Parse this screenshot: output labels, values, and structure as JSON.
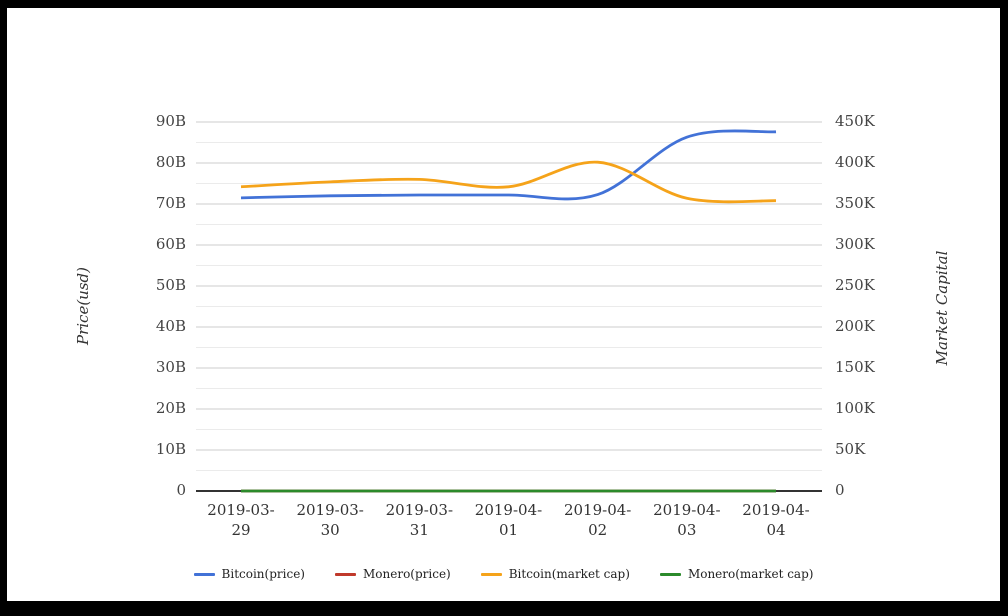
{
  "page": {
    "background": "#ffffff",
    "frame_color": "#000000"
  },
  "chart_data": {
    "type": "line",
    "title": "",
    "categories": [
      "2019-03-29",
      "2019-03-30",
      "2019-03-31",
      "2019-04-01",
      "2019-04-02",
      "2019-04-03",
      "2019-04-04"
    ],
    "series": [
      {
        "name": "Bitcoin(price)",
        "color": "#4272d7",
        "axis": "left",
        "values": [
          71.5,
          72.0,
          72.2,
          72.2,
          72.3,
          86.3,
          87.6
        ],
        "unit": "B"
      },
      {
        "name": "Monero(price)",
        "color": "#c0392b",
        "axis": "left",
        "values": [
          0,
          0,
          0,
          0,
          0,
          0,
          0
        ],
        "unit": "B"
      },
      {
        "name": "Bitcoin(market cap)",
        "color": "#f5a31a",
        "axis": "right",
        "values": [
          371,
          377,
          380,
          371,
          401,
          357,
          354
        ],
        "unit": "K"
      },
      {
        "name": "Monero(market cap)",
        "color": "#2b8a2b",
        "axis": "right",
        "values": [
          0,
          0,
          0,
          0,
          0,
          0,
          0
        ],
        "unit": "K"
      }
    ],
    "left_axis": {
      "title": "Price(usd)",
      "ylim": [
        0,
        90
      ],
      "ticks": [
        "0",
        "10B",
        "20B",
        "30B",
        "40B",
        "50B",
        "60B",
        "70B",
        "80B",
        "90B"
      ]
    },
    "right_axis": {
      "title": "Market Capital",
      "ylim": [
        0,
        450
      ],
      "ticks": [
        "0",
        "50K",
        "100K",
        "150K",
        "200K",
        "250K",
        "300K",
        "350K",
        "400K",
        "450K"
      ]
    },
    "grid": {
      "major_color": "#cccccc",
      "minor_color": "#ebebeb",
      "baseline_color": "#333333"
    },
    "legend_position": "bottom",
    "interpolation": "smooth"
  }
}
